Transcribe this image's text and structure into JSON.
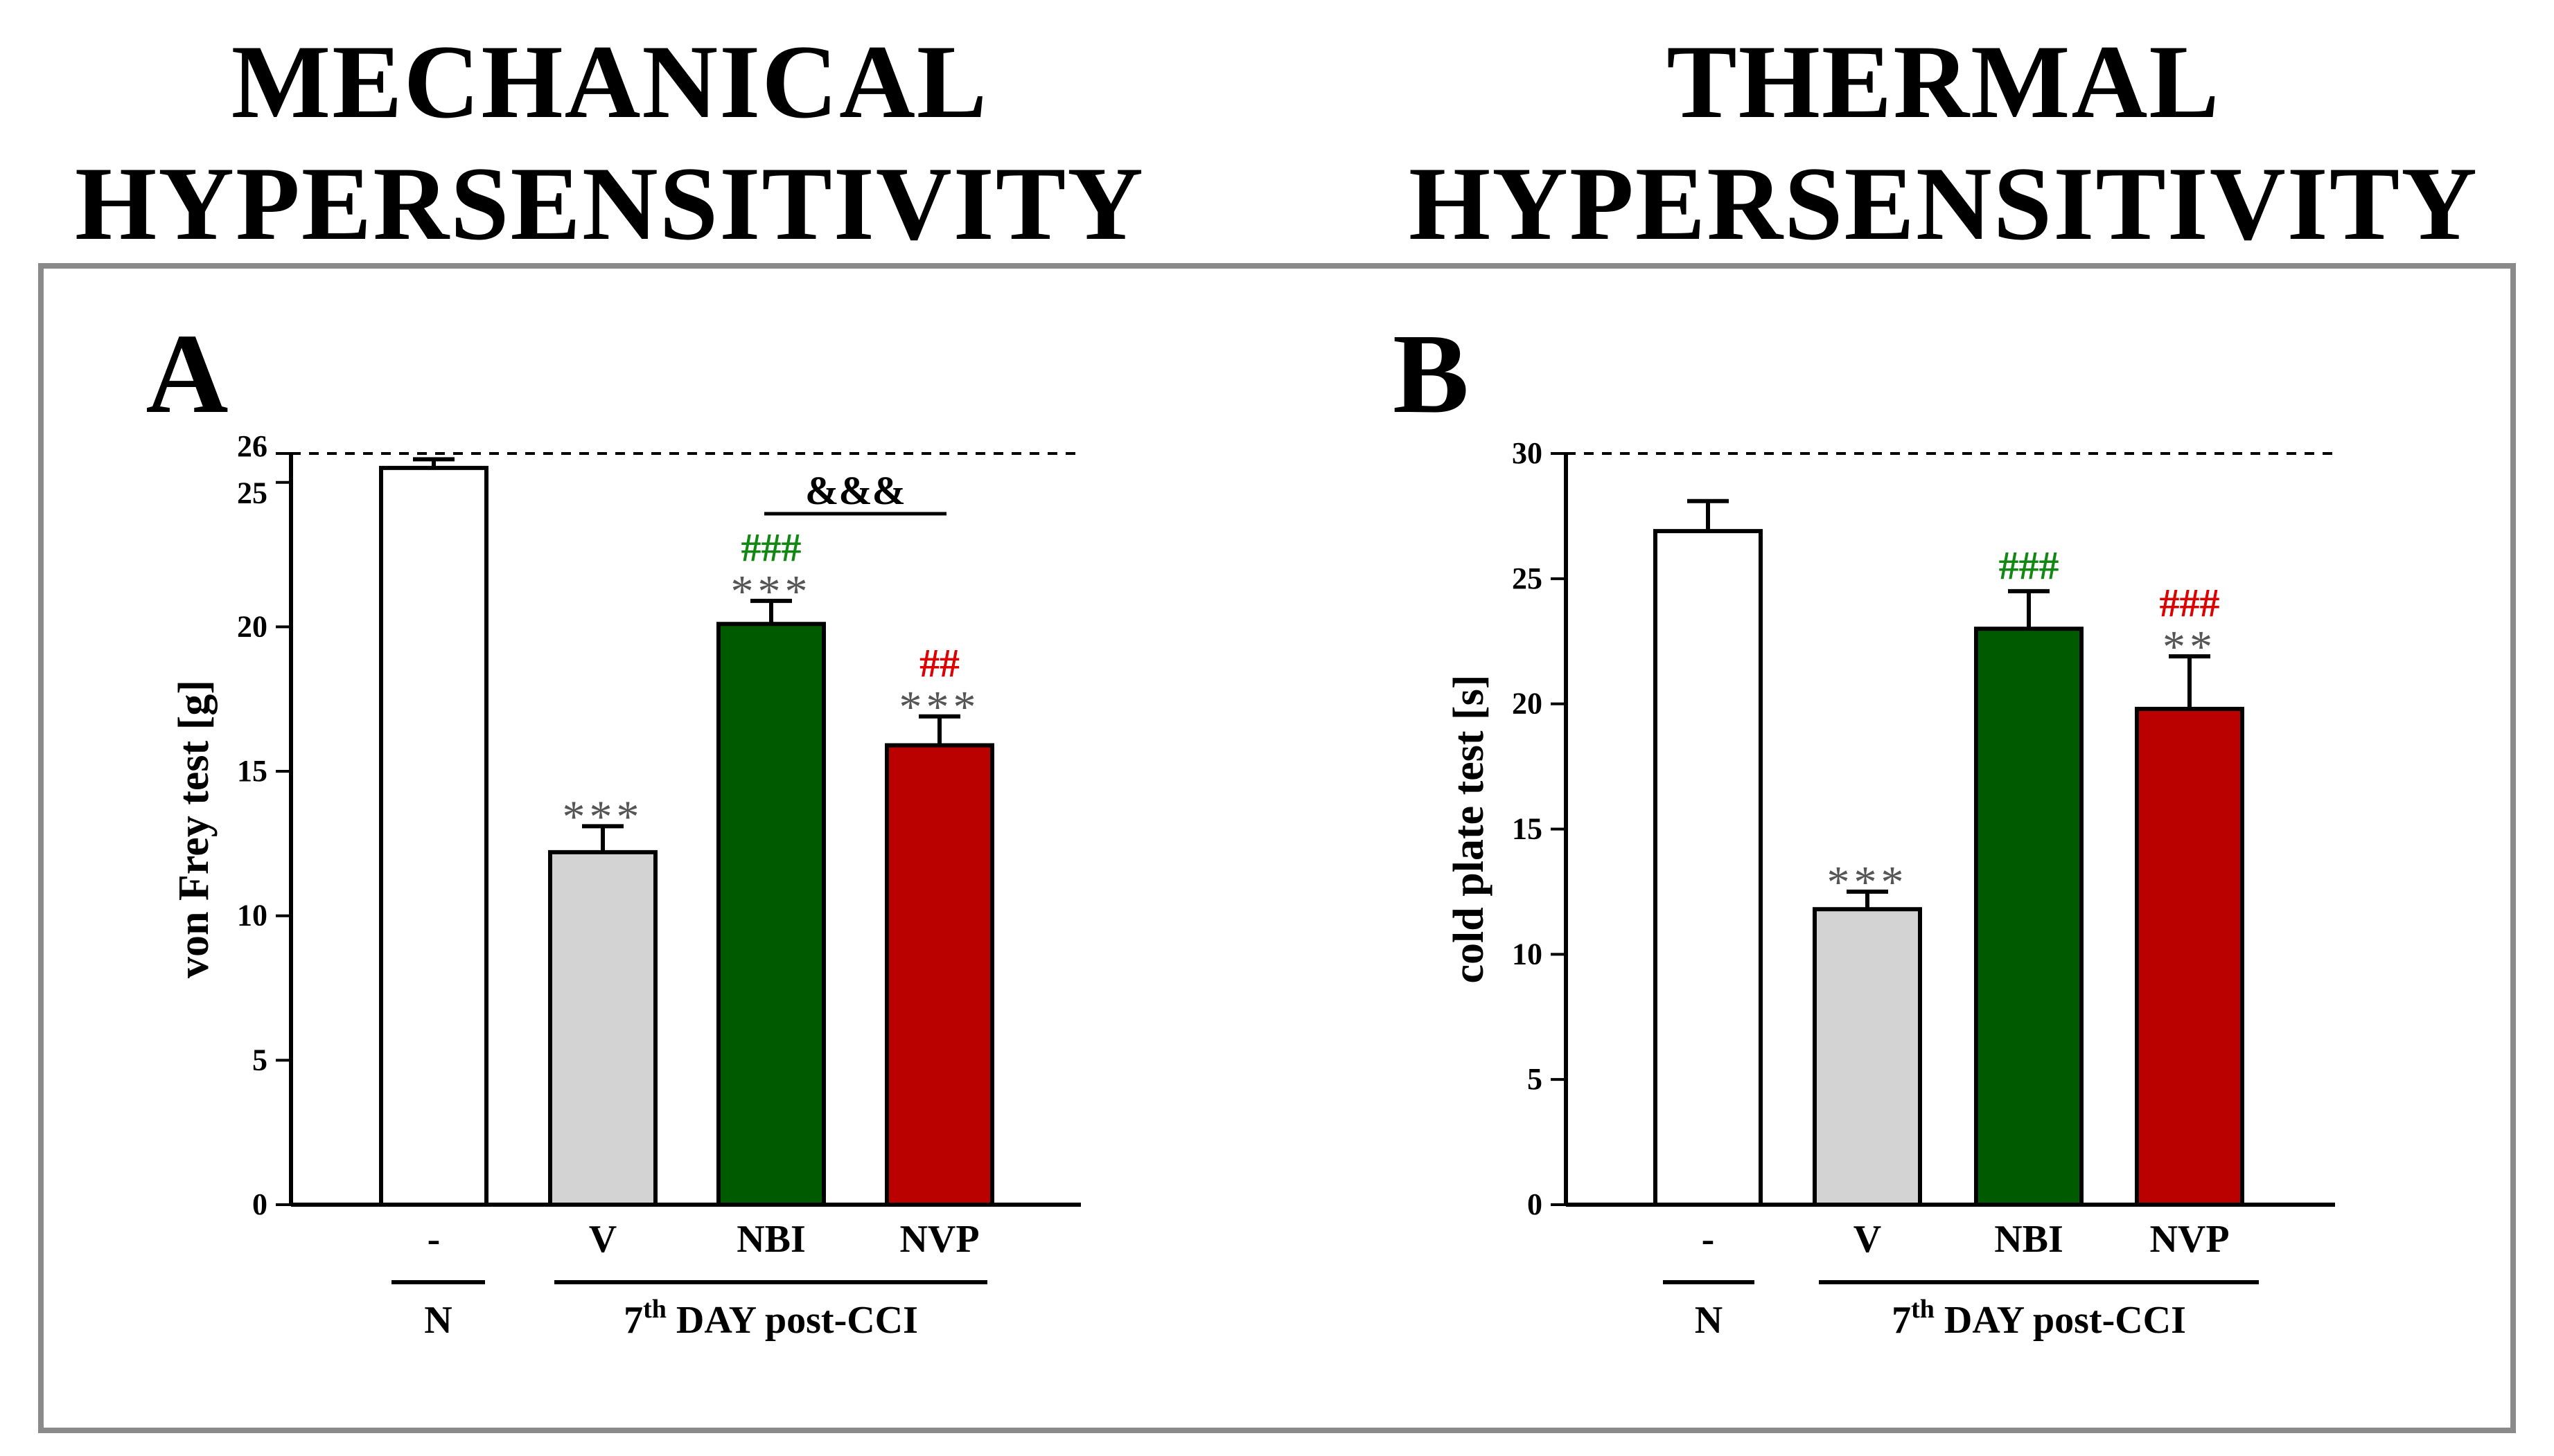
{
  "headings": {
    "left": [
      "MECHANICAL",
      "HYPERSENSITIVITY"
    ],
    "right": [
      "THERMAL",
      "HYPERSENSITIVITY"
    ]
  },
  "chart_data": [
    {
      "type": "bar",
      "panel": "A",
      "ylabel": "von Frey test [g]",
      "ylim": [
        0,
        26
      ],
      "yticks": [
        0,
        5,
        10,
        15,
        20,
        25,
        26
      ],
      "reference_line": 26,
      "categories": [
        "-",
        "V",
        "NBI",
        "NVP"
      ],
      "values": [
        25.5,
        12.2,
        20.1,
        15.9
      ],
      "errors": [
        0.3,
        0.9,
        0.8,
        1.0
      ],
      "colors": [
        "#ffffff",
        "#d3d3d3",
        "#005a00",
        "#bb0000"
      ],
      "stars": [
        "",
        "***",
        "***",
        "***"
      ],
      "hash_marks": [
        "",
        "",
        "###",
        "##"
      ],
      "hash_colors": [
        "",
        "",
        "#118811",
        "#dd0000"
      ],
      "comparison": {
        "label": "&&&",
        "from": "NBI",
        "to": "NVP"
      },
      "group_labels": {
        "control": "N",
        "treated_prefix": "7",
        "treated_sup": "th",
        "treated_suffix": " DAY post-CCI"
      }
    },
    {
      "type": "bar",
      "panel": "B",
      "ylabel": "cold plate test  [s]",
      "ylim": [
        0,
        30
      ],
      "yticks": [
        0,
        5,
        10,
        15,
        20,
        25,
        30
      ],
      "reference_line": 30,
      "categories": [
        "-",
        "V",
        "NBI",
        "NVP"
      ],
      "values": [
        26.9,
        11.8,
        23.0,
        19.8
      ],
      "errors": [
        1.2,
        0.7,
        1.5,
        2.1
      ],
      "colors": [
        "#ffffff",
        "#d3d3d3",
        "#005a00",
        "#bb0000"
      ],
      "stars": [
        "",
        "***",
        "",
        "**"
      ],
      "hash_marks": [
        "",
        "",
        "###",
        "###"
      ],
      "hash_colors": [
        "",
        "",
        "#118811",
        "#dd0000"
      ],
      "comparison": null,
      "group_labels": {
        "control": "N",
        "treated_prefix": "7",
        "treated_sup": "th",
        "treated_suffix": " DAY post-CCI"
      }
    }
  ]
}
